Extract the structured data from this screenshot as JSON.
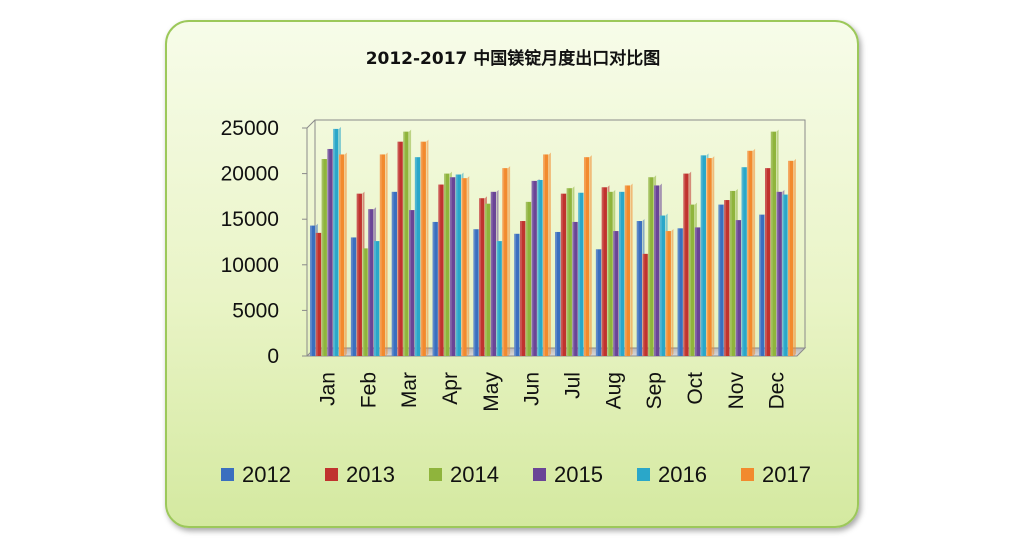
{
  "chart_data": {
    "type": "bar",
    "title": "2012-2017 中国镁锭月度出口对比图",
    "categories": [
      "Jan",
      "Feb",
      "Mar",
      "Apr",
      "May",
      "Jun",
      "Jul",
      "Aug",
      "Sep",
      "Oct",
      "Nov",
      "Dec"
    ],
    "ylim": [
      0,
      25000
    ],
    "yticks": [
      0,
      5000,
      10000,
      15000,
      20000,
      25000
    ],
    "grid": false,
    "legend": "bottom",
    "series": [
      {
        "name": "2012",
        "color": "#3a6fbf",
        "values": [
          14300,
          13000,
          18000,
          14700,
          13900,
          13400,
          13600,
          11700,
          14800,
          14000,
          16600,
          15500
        ]
      },
      {
        "name": "2013",
        "color": "#c0332e",
        "values": [
          13500,
          17800,
          23500,
          18800,
          17300,
          14800,
          17800,
          18500,
          11200,
          20000,
          17100,
          20600
        ]
      },
      {
        "name": "2014",
        "color": "#8fb43c",
        "values": [
          21600,
          11800,
          24600,
          20000,
          16700,
          16900,
          18400,
          18000,
          19600,
          16600,
          18100,
          24600
        ]
      },
      {
        "name": "2015",
        "color": "#6a4596",
        "values": [
          22700,
          16100,
          16000,
          19600,
          18000,
          19200,
          14700,
          13700,
          18700,
          14100,
          14900,
          18000
        ]
      },
      {
        "name": "2016",
        "color": "#2aa7c9",
        "values": [
          24900,
          12600,
          21800,
          19900,
          12600,
          19300,
          17900,
          18000,
          15400,
          22000,
          20700,
          17700
        ]
      },
      {
        "name": "2017",
        "color": "#f28a2e",
        "values": [
          22100,
          22100,
          23500,
          19500,
          20600,
          22100,
          21800,
          18700,
          13700,
          21700,
          22500,
          21400
        ]
      }
    ]
  }
}
